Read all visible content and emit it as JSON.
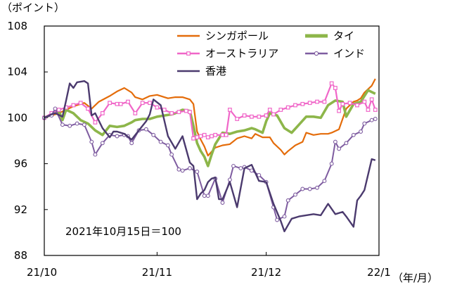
{
  "chart_data": {
    "type": "line",
    "y_unit": "（ポイント）",
    "x_unit": "（年/月）",
    "annotation": "2021年10月15日＝100",
    "ylim": [
      88,
      108
    ],
    "y_ticks": [
      "88",
      "92",
      "96",
      "100",
      "104",
      "108"
    ],
    "x_ticks": [
      "21/10",
      "21/11",
      "21/12",
      "22/1"
    ],
    "x_range_days": [
      0,
      92
    ],
    "grid": false,
    "legend_placement": "top-right",
    "colors": {
      "singapore": "#E46C0A",
      "thailand": "#8DB64A",
      "australia": "#F066C8",
      "india": "#7E5CA0",
      "hongkong": "#4B3A6E"
    },
    "series": [
      {
        "name": "シンガポール",
        "key": "singapore",
        "marker": "none",
        "x": [
          0,
          2,
          4,
          6,
          8,
          11,
          13,
          15,
          18,
          20,
          22,
          24,
          25,
          27,
          29,
          31,
          33,
          34,
          36,
          38,
          40,
          41,
          42,
          43,
          44,
          45,
          47,
          49,
          51,
          53,
          55,
          57,
          58,
          60,
          62,
          63,
          65,
          66,
          67,
          69,
          71,
          72,
          74,
          76,
          78,
          79,
          81,
          83,
          85,
          86,
          87,
          88,
          89,
          90,
          91
        ],
        "y": [
          100,
          100.2,
          100.4,
          100.7,
          101,
          101.3,
          100.8,
          101.4,
          101.9,
          102.3,
          102.6,
          102.2,
          101.8,
          101.6,
          101.9,
          102,
          101.8,
          101.7,
          101.8,
          101.8,
          101.6,
          101.2,
          98.8,
          98.1,
          97.5,
          96.7,
          97.4,
          97.6,
          97.7,
          98.2,
          98.4,
          98.2,
          98.6,
          98.3,
          98.3,
          97.8,
          97.2,
          96.8,
          97.1,
          97.6,
          97.9,
          98.7,
          98.5,
          98.6,
          98.6,
          98.7,
          99,
          100.8,
          101.4,
          101.5,
          101.7,
          102.2,
          102.5,
          102.8,
          103.4
        ]
      },
      {
        "name": "タイ",
        "key": "thailand",
        "marker": "none",
        "x": [
          0,
          2,
          4,
          5,
          6,
          8,
          10,
          12,
          14,
          16,
          18,
          20,
          22,
          24,
          25,
          27,
          29,
          31,
          33,
          35,
          36,
          38,
          40,
          41,
          42,
          43,
          44,
          45,
          46,
          47,
          49,
          51,
          53,
          55,
          57,
          58,
          60,
          61,
          62,
          64,
          66,
          68,
          70,
          72,
          74,
          76,
          78,
          80,
          82,
          83,
          85,
          87,
          88,
          89,
          91
        ],
        "y": [
          100,
          100.3,
          100.6,
          99.8,
          100.7,
          100.4,
          99.8,
          99.5,
          98.9,
          98.5,
          99.3,
          99.2,
          99.3,
          99.6,
          99.8,
          99.9,
          99.9,
          100.1,
          100.2,
          100.3,
          100.4,
          100.7,
          100.6,
          99.3,
          97.8,
          97.1,
          96.6,
          95.8,
          96.8,
          97.7,
          98.7,
          98.6,
          98.8,
          98.9,
          99.1,
          99,
          98.7,
          99.7,
          100.4,
          100.2,
          99.1,
          98.7,
          99.4,
          100.1,
          100.1,
          100,
          101.1,
          101.5,
          101.4,
          100.1,
          101.2,
          101.4,
          101.9,
          102.4,
          102.1
        ]
      },
      {
        "name": "オーストラリア",
        "key": "australia",
        "marker": "square",
        "x": [
          0,
          2,
          4,
          6,
          8,
          10,
          12,
          14,
          16,
          18,
          20,
          21,
          23,
          25,
          27,
          29,
          31,
          33,
          35,
          37,
          39,
          40,
          41,
          42,
          43,
          44,
          45,
          46,
          47,
          49,
          50,
          51,
          53,
          55,
          57,
          59,
          61,
          62,
          63,
          65,
          67,
          69,
          71,
          73,
          75,
          77,
          79,
          80,
          81,
          82,
          84,
          86,
          88,
          89,
          90,
          91
        ],
        "y": [
          100,
          100.4,
          100.7,
          100.9,
          101.1,
          101.3,
          100.8,
          99.6,
          100.4,
          101.3,
          101.2,
          101.2,
          101.4,
          100.4,
          101.3,
          101.3,
          100.9,
          100.7,
          100.4,
          100.5,
          100.6,
          100.5,
          98.2,
          98.3,
          98.4,
          98.5,
          98.3,
          98.4,
          98.5,
          98.5,
          98.5,
          100.7,
          99.9,
          100.2,
          100.1,
          100.1,
          100.2,
          100.7,
          100.3,
          100.7,
          100.9,
          101.1,
          101.2,
          101.3,
          101.4,
          101.4,
          103,
          102.6,
          100.6,
          101.2,
          101.3,
          101.1,
          101.4,
          100.7,
          101.6,
          100.7
        ]
      },
      {
        "name": "インド",
        "key": "india",
        "marker": "circle",
        "x": [
          0,
          2,
          3,
          5,
          7,
          9,
          11,
          13,
          14,
          16,
          18,
          20,
          22,
          23,
          24,
          26,
          28,
          30,
          32,
          34,
          35,
          37,
          38,
          40,
          42,
          44,
          45,
          47,
          49,
          51,
          52,
          54,
          55,
          57,
          59,
          61,
          63,
          64,
          66,
          67,
          69,
          71,
          73,
          75,
          77,
          79,
          80,
          81,
          83,
          85,
          87,
          88,
          90,
          91
        ],
        "y": [
          100,
          100.2,
          100.8,
          99.4,
          99.3,
          99.5,
          99.4,
          97.9,
          96.8,
          97.8,
          98.5,
          98.4,
          98.5,
          98.4,
          97.8,
          98.9,
          99,
          98.5,
          97.9,
          97.6,
          96.8,
          95.5,
          95.4,
          95.6,
          95.3,
          93.2,
          93.2,
          94.7,
          92.6,
          94.6,
          95.8,
          95.6,
          95.7,
          95.4,
          95,
          94.4,
          92.2,
          91.1,
          91.4,
          92.8,
          93.3,
          93.8,
          93.8,
          93.9,
          94.5,
          96,
          97.9,
          97.3,
          97.8,
          98.5,
          98.8,
          99.5,
          99.8,
          99.9
        ]
      },
      {
        "name": "香港",
        "key": "hongkong",
        "marker": "none",
        "x": [
          0,
          2,
          3,
          5,
          6,
          7,
          8,
          9,
          11,
          12,
          13,
          14,
          16,
          18,
          19,
          20,
          22,
          24,
          26,
          28,
          29,
          30,
          32,
          34,
          36,
          38,
          40,
          41,
          42,
          43,
          44,
          45,
          46,
          47,
          48,
          49,
          51,
          53,
          55,
          57,
          59,
          61,
          63,
          65,
          66,
          68,
          70,
          72,
          74,
          76,
          78,
          80,
          82,
          83,
          85,
          86,
          87,
          88,
          90,
          91
        ],
        "y": [
          100,
          100.3,
          100.4,
          100.1,
          101.5,
          103,
          102.6,
          103.1,
          103.2,
          103,
          100.2,
          100.4,
          99.1,
          98.3,
          98.8,
          98.8,
          98.6,
          98.1,
          98.9,
          99.7,
          100.3,
          101.6,
          101.1,
          98.4,
          97.3,
          98.4,
          96.1,
          95.8,
          92.9,
          93.4,
          93.7,
          94.4,
          94.7,
          94.8,
          92.9,
          92.9,
          94.4,
          92.2,
          95.6,
          95.9,
          94.5,
          94.4,
          92.5,
          91,
          90.1,
          91.2,
          91.4,
          91.5,
          91.6,
          91.5,
          92.5,
          91.6,
          91.8,
          91.4,
          90.5,
          92.8,
          93.2,
          93.7,
          96.4,
          96.3
        ]
      }
    ]
  }
}
